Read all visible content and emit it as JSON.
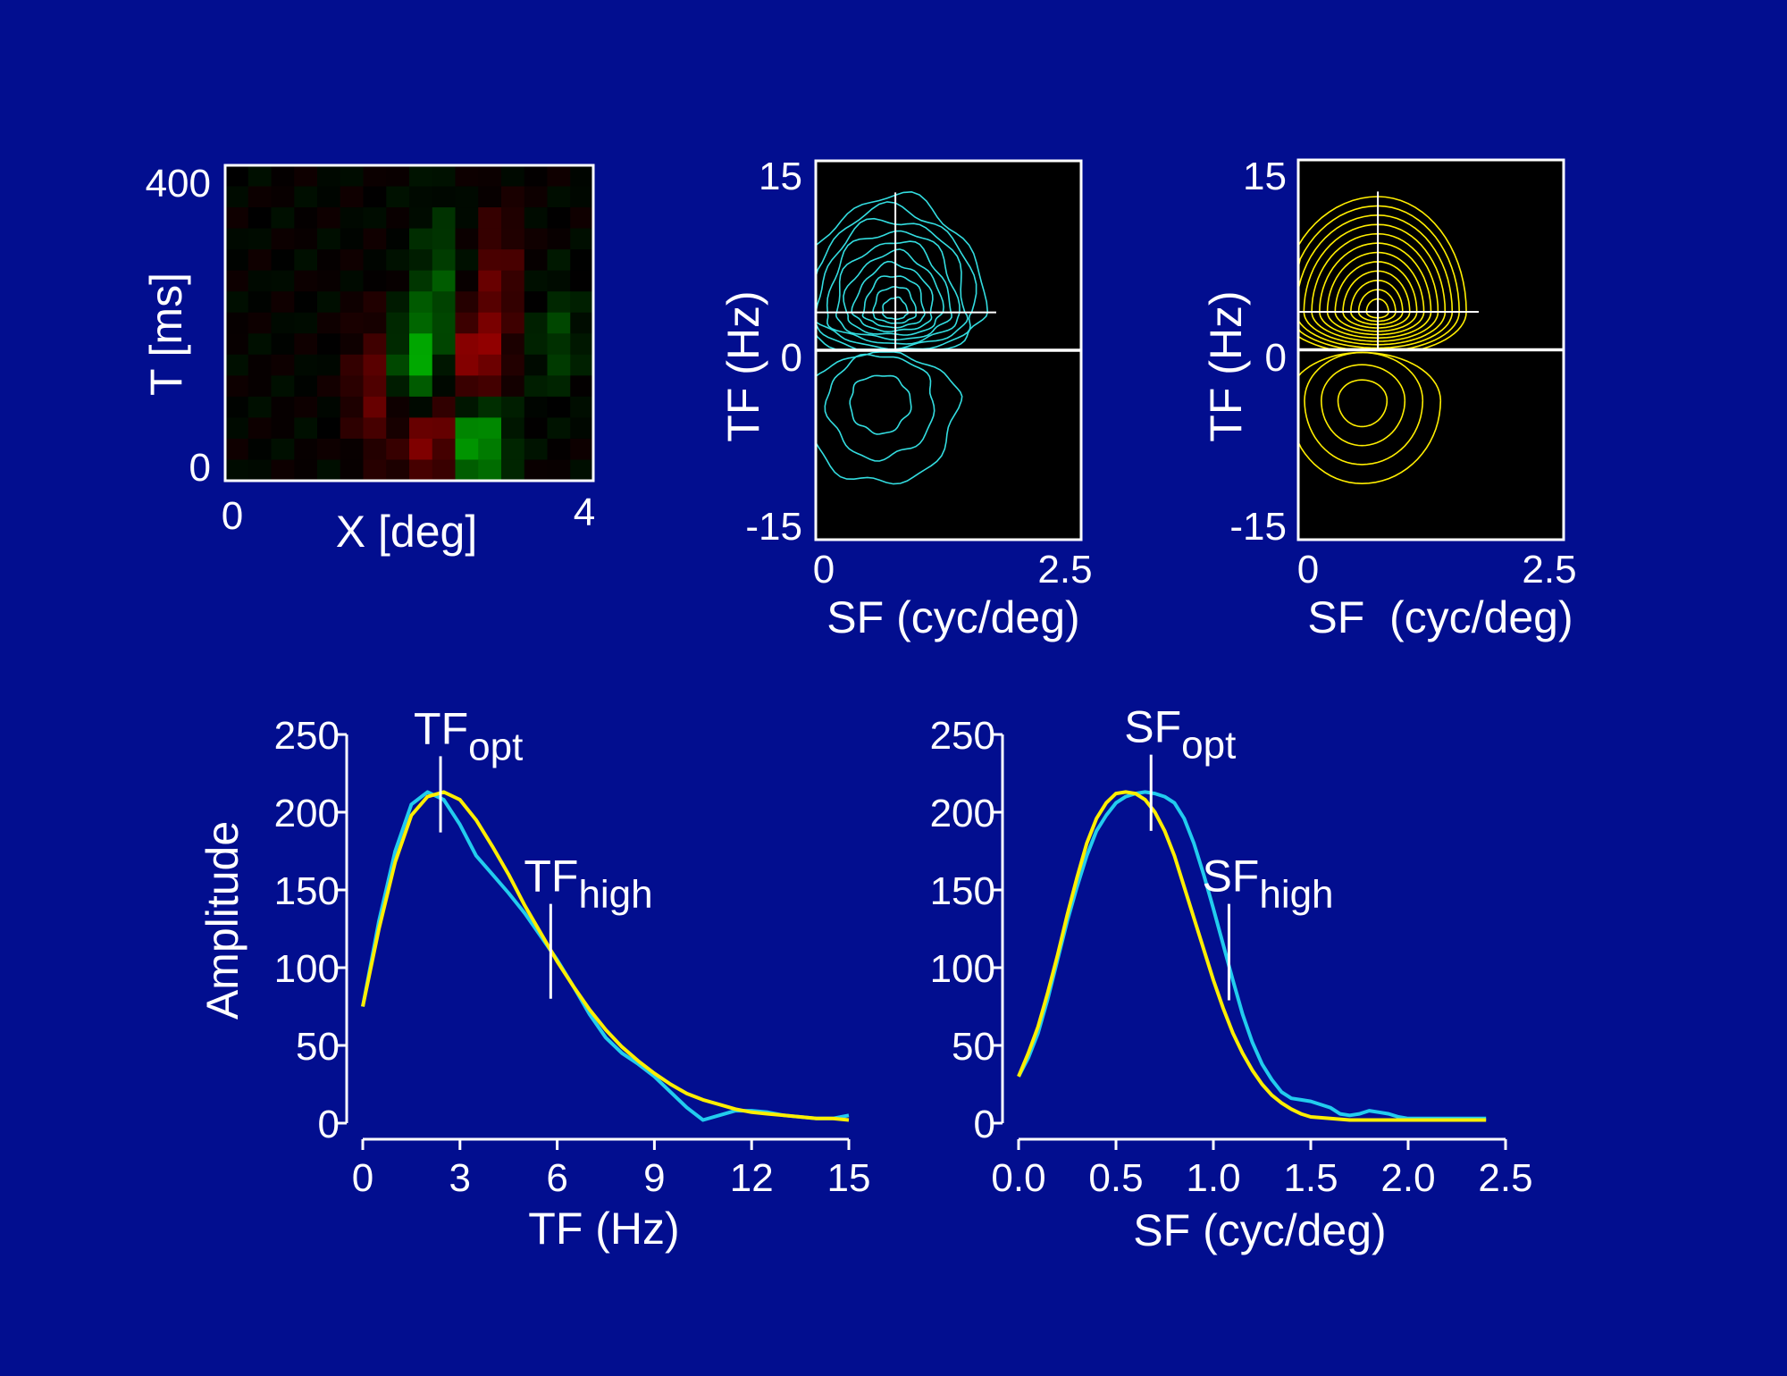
{
  "chart_data": [
    {
      "type": "heatmap",
      "title": "",
      "xlabel": "X [deg]",
      "ylabel": "T [ms]",
      "xlim": [
        0,
        4
      ],
      "ylim": [
        0,
        400
      ],
      "x_ticks": [
        "0",
        "4"
      ],
      "y_ticks": [
        "0",
        "400"
      ],
      "colormap": [
        "#ff0000",
        "#000000",
        "#00ff00"
      ],
      "grid_rows": 15,
      "grid_cols": 16,
      "blobs": [
        {
          "sign": 1,
          "x": 2.65,
          "t": 55,
          "sx": 0.25,
          "st": 45,
          "amp": 0.95
        },
        {
          "sign": 1,
          "x": 2.1,
          "t": 140,
          "sx": 0.23,
          "st": 50,
          "amp": 0.75
        },
        {
          "sign": 1,
          "x": 2.35,
          "t": 250,
          "sx": 0.2,
          "st": 70,
          "amp": 0.3
        },
        {
          "sign": -1,
          "x": 2.3,
          "t": 60,
          "sx": 0.22,
          "st": 45,
          "amp": 1.0
        },
        {
          "sign": -1,
          "x": 2.7,
          "t": 150,
          "sx": 0.22,
          "st": 45,
          "amp": 0.7
        },
        {
          "sign": -1,
          "x": 1.65,
          "t": 120,
          "sx": 0.2,
          "st": 60,
          "amp": 0.45
        },
        {
          "sign": -1,
          "x": 2.95,
          "t": 260,
          "sx": 0.2,
          "st": 60,
          "amp": 0.35
        },
        {
          "sign": 1,
          "x": 3.6,
          "t": 180,
          "sx": 0.2,
          "st": 50,
          "amp": 0.25
        }
      ]
    },
    {
      "type": "contour",
      "title": "",
      "xlabel": "SF (cyc/deg)",
      "ylabel": "TF (Hz)",
      "xlim": [
        0,
        2.5
      ],
      "ylim": [
        -15,
        15
      ],
      "x_ticks": [
        "0",
        "2.5"
      ],
      "y_ticks": [
        "-15",
        "0",
        "15"
      ],
      "line_color": "#33dde0",
      "peak": {
        "sf": 0.75,
        "tf": 3
      },
      "crosshair": {
        "sf": 0.75,
        "tf_top": 12.5,
        "sf_right": 1.7,
        "tf": 3
      },
      "upper_levels": 10,
      "lower_peak": {
        "sf": 0.6,
        "tf": -4
      },
      "lower_levels": 3
    },
    {
      "type": "contour",
      "title": "",
      "xlabel": "SF  (cyc/deg)",
      "ylabel": "TF (Hz)",
      "xlim": [
        0,
        2.5
      ],
      "ylim": [
        -15,
        15
      ],
      "x_ticks": [
        "0",
        "2.5"
      ],
      "y_ticks": [
        "-15",
        "0",
        "15"
      ],
      "line_color": "#ffee00",
      "peak": {
        "sf": 0.75,
        "tf": 3
      },
      "crosshair": {
        "sf": 0.75,
        "tf_top": 12.5,
        "sf_right": 1.7,
        "tf": 3
      },
      "upper_levels": 12,
      "lower_peak": {
        "sf": 0.6,
        "tf": -4
      },
      "lower_levels": 4
    },
    {
      "type": "line",
      "title": "",
      "xlabel": "TF (Hz)",
      "ylabel": "Amplitude",
      "xlim": [
        0,
        15
      ],
      "ylim": [
        0,
        250
      ],
      "x_ticks": [
        0,
        3,
        6,
        9,
        12,
        15
      ],
      "y_ticks": [
        0,
        50,
        100,
        150,
        200,
        250
      ],
      "series": [
        {
          "color": "#22ccee",
          "x": [
            0,
            0.5,
            1,
            1.5,
            2,
            2.5,
            3,
            3.5,
            4,
            4.5,
            5,
            5.5,
            6,
            6.5,
            7,
            7.5,
            8,
            8.5,
            9,
            9.5,
            10,
            10.5,
            11,
            11.5,
            12,
            12.5,
            13,
            13.5,
            14,
            14.5,
            15
          ],
          "y": [
            75,
            130,
            175,
            205,
            213,
            208,
            192,
            172,
            160,
            148,
            135,
            120,
            105,
            88,
            70,
            55,
            45,
            38,
            30,
            20,
            10,
            2,
            5,
            8,
            8,
            7,
            5,
            4,
            3,
            3,
            5
          ]
        },
        {
          "color": "#ffee00",
          "x": [
            0,
            0.5,
            1,
            1.5,
            2,
            2.5,
            3,
            3.5,
            4,
            4.5,
            5,
            5.5,
            6,
            6.5,
            7,
            7.5,
            8,
            8.5,
            9,
            9.5,
            10,
            10.5,
            11,
            11.5,
            12,
            12.5,
            13,
            13.5,
            14,
            14.5,
            15
          ],
          "y": [
            75,
            125,
            168,
            198,
            210,
            213,
            208,
            195,
            178,
            160,
            140,
            122,
            104,
            88,
            73,
            60,
            49,
            40,
            32,
            25,
            19,
            15,
            12,
            9,
            7,
            6,
            5,
            4,
            3,
            3,
            2
          ]
        }
      ],
      "markers": [
        {
          "x": 2.4,
          "y_low": 187,
          "y_high": 236,
          "label": "TF",
          "sub": "opt"
        },
        {
          "x": 5.8,
          "y_low": 80,
          "y_high": 141,
          "label": "TF",
          "sub": "high"
        }
      ]
    },
    {
      "type": "line",
      "title": "",
      "xlabel": "SF (cyc/deg)",
      "ylabel": "",
      "xlim": [
        0,
        2.5
      ],
      "ylim": [
        0,
        250
      ],
      "x_ticks": [
        "0.0",
        "0.5",
        "1.0",
        "1.5",
        "2.0",
        "2.5"
      ],
      "y_ticks": [
        0,
        50,
        100,
        150,
        200,
        250
      ],
      "series": [
        {
          "color": "#22ccee",
          "x": [
            0,
            0.05,
            0.1,
            0.15,
            0.2,
            0.25,
            0.3,
            0.35,
            0.4,
            0.45,
            0.5,
            0.55,
            0.6,
            0.65,
            0.7,
            0.75,
            0.8,
            0.85,
            0.9,
            0.95,
            1.0,
            1.05,
            1.1,
            1.15,
            1.2,
            1.25,
            1.3,
            1.35,
            1.4,
            1.45,
            1.5,
            1.55,
            1.6,
            1.65,
            1.7,
            1.75,
            1.8,
            1.85,
            1.9,
            1.95,
            2.0,
            2.1,
            2.2,
            2.3,
            2.4
          ],
          "y": [
            30,
            42,
            58,
            80,
            105,
            130,
            152,
            172,
            188,
            198,
            206,
            210,
            212,
            213,
            212,
            210,
            206,
            196,
            180,
            160,
            138,
            115,
            92,
            70,
            52,
            38,
            28,
            20,
            16,
            15,
            14,
            12,
            10,
            6,
            5,
            6,
            8,
            7,
            6,
            4,
            3,
            3,
            3,
            3,
            3
          ]
        },
        {
          "color": "#ffee00",
          "x": [
            0,
            0.05,
            0.1,
            0.15,
            0.2,
            0.25,
            0.3,
            0.35,
            0.4,
            0.45,
            0.5,
            0.55,
            0.6,
            0.65,
            0.7,
            0.75,
            0.8,
            0.85,
            0.9,
            0.95,
            1.0,
            1.05,
            1.1,
            1.15,
            1.2,
            1.25,
            1.3,
            1.35,
            1.4,
            1.45,
            1.5,
            1.6,
            1.7,
            1.8,
            1.9,
            2.0,
            2.2,
            2.4
          ],
          "y": [
            30,
            45,
            62,
            84,
            108,
            134,
            158,
            180,
            196,
            206,
            212,
            213,
            212,
            208,
            200,
            188,
            172,
            152,
            132,
            112,
            92,
            74,
            58,
            45,
            34,
            25,
            18,
            13,
            9,
            6,
            4,
            3,
            2,
            2,
            2,
            2,
            2,
            2
          ]
        }
      ],
      "markers": [
        {
          "x": 0.68,
          "y_low": 188,
          "y_high": 237,
          "label": "SF",
          "sub": "opt"
        },
        {
          "x": 1.08,
          "y_low": 79,
          "y_high": 141,
          "label": "SF",
          "sub": "high"
        }
      ]
    }
  ]
}
